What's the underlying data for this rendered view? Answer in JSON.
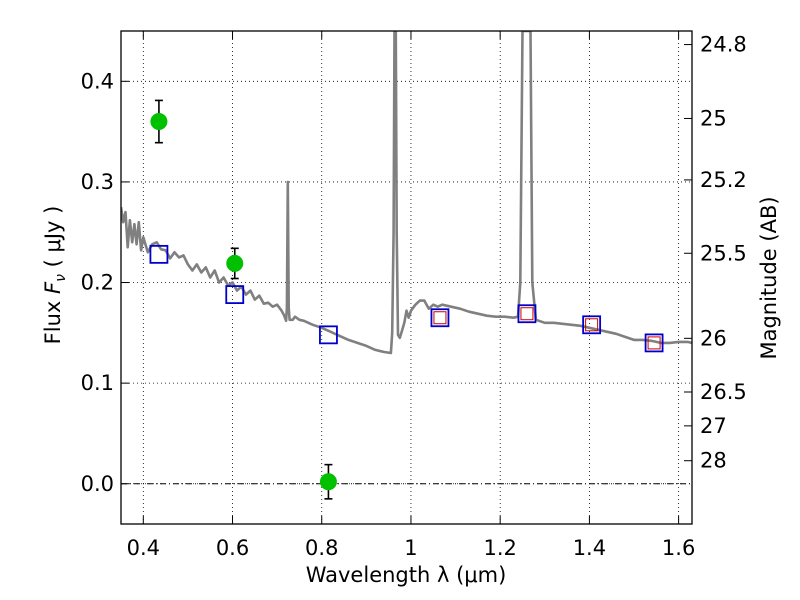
{
  "chart_data": {
    "type": "scatter",
    "xlabel": "Wavelength  λ (μm)",
    "ylabel": "Flux  F_ν  ( μJy )",
    "ylabel_parts": {
      "prefix": "Flux  ",
      "symbol": "F",
      "subscript": "ν",
      "suffix": "  ( μJy )"
    },
    "y2label": "Magnitude (AB)",
    "xlim": [
      0.35,
      1.63
    ],
    "ylim": [
      -0.04,
      0.45
    ],
    "grid": true,
    "x_ticks": [
      {
        "value": 0.4,
        "label": "0.4"
      },
      {
        "value": 0.6,
        "label": "0.6"
      },
      {
        "value": 0.8,
        "label": "0.8"
      },
      {
        "value": 1.0,
        "label": "1"
      },
      {
        "value": 1.2,
        "label": "1.2"
      },
      {
        "value": 1.4,
        "label": "1.4"
      },
      {
        "value": 1.6,
        "label": "1.6"
      }
    ],
    "y_ticks": [
      {
        "value": 0.0,
        "label": "0.0"
      },
      {
        "value": 0.1,
        "label": "0.1"
      },
      {
        "value": 0.2,
        "label": "0.2"
      },
      {
        "value": 0.3,
        "label": "0.3"
      },
      {
        "value": 0.4,
        "label": "0.4"
      }
    ],
    "y2_ticks": [
      {
        "value": 24.8,
        "label": "24.8"
      },
      {
        "value": 25.0,
        "label": "25"
      },
      {
        "value": 25.2,
        "label": "25.2"
      },
      {
        "value": 25.5,
        "label": "25.5"
      },
      {
        "value": 26.0,
        "label": "26"
      },
      {
        "value": 26.5,
        "label": "26.5"
      },
      {
        "value": 27.0,
        "label": "27"
      },
      {
        "value": 28.0,
        "label": "28"
      }
    ],
    "colors": {
      "spectrum": "#808080",
      "observed": "#00c000",
      "model_box": "#0000cc",
      "model_inner": "#cc0000",
      "zero_line": "#000000"
    },
    "series": [
      {
        "type": "line",
        "points": [
          [
            0.35,
            0.275
          ],
          [
            0.355,
            0.26
          ],
          [
            0.36,
            0.27
          ],
          [
            0.365,
            0.235
          ],
          [
            0.37,
            0.262
          ],
          [
            0.375,
            0.24
          ],
          [
            0.38,
            0.258
          ],
          [
            0.385,
            0.238
          ],
          [
            0.39,
            0.26
          ],
          [
            0.395,
            0.232
          ],
          [
            0.4,
            0.245
          ],
          [
            0.41,
            0.23
          ],
          [
            0.42,
            0.238
          ],
          [
            0.43,
            0.24
          ],
          [
            0.44,
            0.233
          ],
          [
            0.45,
            0.232
          ],
          [
            0.46,
            0.224
          ],
          [
            0.47,
            0.23
          ],
          [
            0.48,
            0.225
          ],
          [
            0.49,
            0.227
          ],
          [
            0.5,
            0.218
          ],
          [
            0.51,
            0.212
          ],
          [
            0.52,
            0.218
          ],
          [
            0.53,
            0.21
          ],
          [
            0.54,
            0.215
          ],
          [
            0.55,
            0.205
          ],
          [
            0.56,
            0.212
          ],
          [
            0.57,
            0.2
          ],
          [
            0.58,
            0.205
          ],
          [
            0.59,
            0.197
          ],
          [
            0.6,
            0.2
          ],
          [
            0.61,
            0.192
          ],
          [
            0.62,
            0.196
          ],
          [
            0.63,
            0.188
          ],
          [
            0.64,
            0.192
          ],
          [
            0.65,
            0.183
          ],
          [
            0.66,
            0.187
          ],
          [
            0.67,
            0.179
          ],
          [
            0.68,
            0.18
          ],
          [
            0.69,
            0.176
          ],
          [
            0.7,
            0.178
          ],
          [
            0.71,
            0.172
          ],
          [
            0.715,
            0.168
          ],
          [
            0.72,
            0.162
          ],
          [
            0.722,
            0.175
          ],
          [
            0.724,
            0.3
          ],
          [
            0.726,
            0.175
          ],
          [
            0.728,
            0.163
          ],
          [
            0.735,
            0.163
          ],
          [
            0.74,
            0.166
          ],
          [
            0.75,
            0.163
          ],
          [
            0.76,
            0.162
          ],
          [
            0.78,
            0.158
          ],
          [
            0.8,
            0.155
          ],
          [
            0.82,
            0.151
          ],
          [
            0.84,
            0.147
          ],
          [
            0.86,
            0.143
          ],
          [
            0.88,
            0.14
          ],
          [
            0.9,
            0.137
          ],
          [
            0.92,
            0.133
          ],
          [
            0.94,
            0.131
          ],
          [
            0.955,
            0.13
          ],
          [
            0.958,
            0.15
          ],
          [
            0.961,
            0.25
          ],
          [
            0.963,
            0.45
          ],
          [
            0.966,
            0.45
          ],
          [
            0.968,
            0.25
          ],
          [
            0.971,
            0.148
          ],
          [
            0.975,
            0.145
          ],
          [
            0.98,
            0.152
          ],
          [
            0.985,
            0.16
          ],
          [
            0.99,
            0.172
          ],
          [
            0.995,
            0.165
          ],
          [
            1.0,
            0.172
          ],
          [
            1.01,
            0.178
          ],
          [
            1.02,
            0.182
          ],
          [
            1.03,
            0.182
          ],
          [
            1.04,
            0.174
          ],
          [
            1.05,
            0.178
          ],
          [
            1.06,
            0.176
          ],
          [
            1.07,
            0.178
          ],
          [
            1.09,
            0.176
          ],
          [
            1.11,
            0.174
          ],
          [
            1.13,
            0.171
          ],
          [
            1.15,
            0.169
          ],
          [
            1.17,
            0.167
          ],
          [
            1.19,
            0.166
          ],
          [
            1.21,
            0.166
          ],
          [
            1.23,
            0.165
          ],
          [
            1.24,
            0.166
          ],
          [
            1.245,
            0.2
          ],
          [
            1.25,
            0.45
          ],
          [
            1.268,
            0.45
          ],
          [
            1.272,
            0.2
          ],
          [
            1.28,
            0.163
          ],
          [
            1.3,
            0.16
          ],
          [
            1.32,
            0.16
          ],
          [
            1.34,
            0.159
          ],
          [
            1.36,
            0.158
          ],
          [
            1.38,
            0.157
          ],
          [
            1.4,
            0.155
          ],
          [
            1.42,
            0.153
          ],
          [
            1.44,
            0.151
          ],
          [
            1.46,
            0.149
          ],
          [
            1.48,
            0.146
          ],
          [
            1.5,
            0.143
          ],
          [
            1.52,
            0.143
          ],
          [
            1.54,
            0.142
          ],
          [
            1.56,
            0.14
          ],
          [
            1.58,
            0.14
          ],
          [
            1.6,
            0.141
          ],
          [
            1.62,
            0.141
          ],
          [
            1.63,
            0.14
          ]
        ]
      },
      {
        "type": "scatter",
        "marker": "circle",
        "points": [
          {
            "x": 0.435,
            "y": 0.36,
            "err": 0.021
          },
          {
            "x": 0.605,
            "y": 0.219,
            "err": 0.015
          },
          {
            "x": 0.815,
            "y": 0.002,
            "err": 0.017
          }
        ]
      },
      {
        "type": "scatter",
        "marker": "square",
        "points": [
          {
            "x": 0.435,
            "y": 0.228
          },
          {
            "x": 0.605,
            "y": 0.188
          },
          {
            "x": 0.815,
            "y": 0.148
          },
          {
            "x": 1.065,
            "y": 0.165
          },
          {
            "x": 1.26,
            "y": 0.169
          },
          {
            "x": 1.405,
            "y": 0.158
          },
          {
            "x": 1.545,
            "y": 0.14
          }
        ]
      },
      {
        "type": "scatter",
        "marker": "square-inner",
        "points": [
          {
            "x": 1.065,
            "y": 0.165
          },
          {
            "x": 1.26,
            "y": 0.169
          },
          {
            "x": 1.405,
            "y": 0.158
          },
          {
            "x": 1.545,
            "y": 0.14
          }
        ]
      }
    ]
  }
}
